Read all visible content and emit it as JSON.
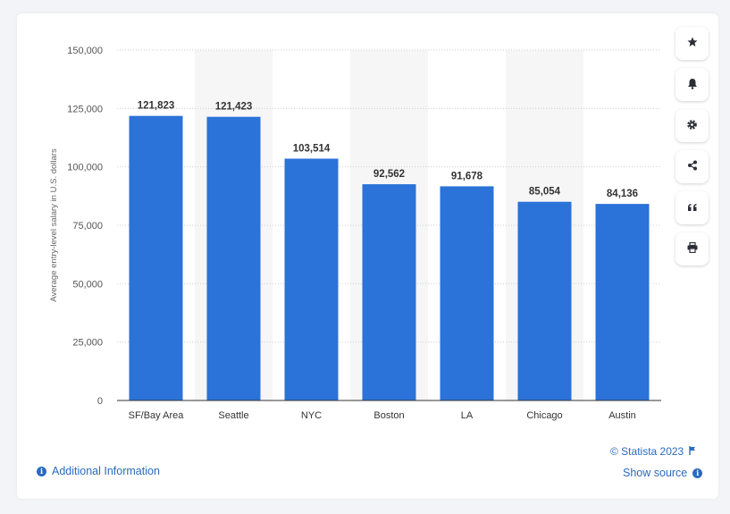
{
  "chart_data": {
    "type": "bar",
    "categories": [
      "SF/Bay Area",
      "Seattle",
      "NYC",
      "Boston",
      "LA",
      "Chicago",
      "Austin"
    ],
    "values": [
      121823,
      121423,
      103514,
      92562,
      91678,
      85054,
      84136
    ],
    "value_labels": [
      "121,823",
      "121,423",
      "103,514",
      "92,562",
      "91,678",
      "85,054",
      "84,136"
    ],
    "title": "",
    "xlabel": "",
    "ylabel": "Average entry-level salary in U.S. dollars",
    "ylim": [
      0,
      150000
    ],
    "yticks": [
      0,
      25000,
      50000,
      75000,
      100000,
      125000,
      150000
    ],
    "ytick_labels": [
      "0",
      "25,000",
      "50,000",
      "75,000",
      "100,000",
      "125,000",
      "150,000"
    ],
    "grid": "horizontal dotted",
    "bar_color": "#2b72d9",
    "alternate_band_color": "#f6f6f6"
  },
  "sidebar": {
    "buttons": [
      {
        "name": "favorite",
        "icon": "star-icon",
        "glyph": "★"
      },
      {
        "name": "notify",
        "icon": "bell-icon",
        "glyph": "🔔"
      },
      {
        "name": "settings",
        "icon": "gear-icon",
        "glyph": "⚙"
      },
      {
        "name": "share",
        "icon": "share-icon",
        "glyph": "<"
      },
      {
        "name": "cite",
        "icon": "quote-icon",
        "glyph": "❝"
      },
      {
        "name": "print",
        "icon": "print-icon",
        "glyph": "⎙"
      }
    ]
  },
  "footer": {
    "copyright": "© Statista 2023",
    "show_source": "Show source",
    "additional_info": "Additional Information"
  }
}
